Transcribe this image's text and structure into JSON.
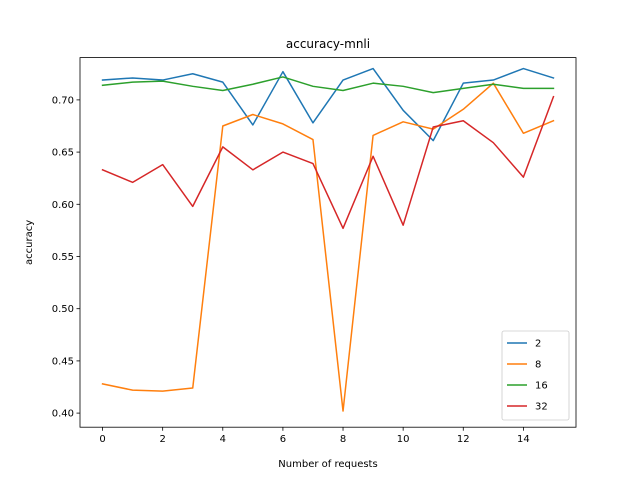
{
  "chart_data": {
    "type": "line",
    "title": "accuracy-mnli",
    "xlabel": "Number of requests",
    "ylabel": "accuracy",
    "x": [
      0,
      1,
      2,
      3,
      4,
      5,
      6,
      7,
      8,
      9,
      10,
      11,
      12,
      13,
      14,
      15
    ],
    "xlim": [
      -0.75,
      15.75
    ],
    "ylim": [
      0.3865,
      0.7405
    ],
    "xticks": [
      0,
      2,
      4,
      6,
      8,
      10,
      12,
      14
    ],
    "xtick_labels": [
      "0",
      "2",
      "4",
      "6",
      "8",
      "10",
      "12",
      "14"
    ],
    "yticks": [
      0.4,
      0.45,
      0.5,
      0.55,
      0.6,
      0.65,
      0.7
    ],
    "ytick_labels": [
      "0.40",
      "0.45",
      "0.50",
      "0.55",
      "0.60",
      "0.65",
      "0.70"
    ],
    "grid": false,
    "legend_position": "lower right",
    "series": [
      {
        "name": "2",
        "color": "#1f77b4",
        "values": [
          0.719,
          0.721,
          0.719,
          0.725,
          0.717,
          0.676,
          0.727,
          0.678,
          0.719,
          0.73,
          0.69,
          0.661,
          0.716,
          0.719,
          0.73,
          0.721
        ]
      },
      {
        "name": "8",
        "color": "#ff7f0e",
        "values": [
          0.428,
          0.422,
          0.421,
          0.424,
          0.675,
          0.686,
          0.677,
          0.662,
          0.402,
          0.666,
          0.679,
          0.672,
          0.691,
          0.716,
          0.668,
          0.68
        ]
      },
      {
        "name": "16",
        "color": "#2ca02c",
        "values": [
          0.714,
          0.717,
          0.718,
          0.713,
          0.709,
          0.715,
          0.722,
          0.713,
          0.709,
          0.716,
          0.713,
          0.707,
          0.711,
          0.715,
          0.711,
          0.711
        ]
      },
      {
        "name": "32",
        "color": "#d62728",
        "values": [
          0.633,
          0.621,
          0.638,
          0.598,
          0.655,
          0.633,
          0.65,
          0.639,
          0.577,
          0.646,
          0.58,
          0.674,
          0.68,
          0.659,
          0.626,
          0.703
        ]
      }
    ]
  }
}
